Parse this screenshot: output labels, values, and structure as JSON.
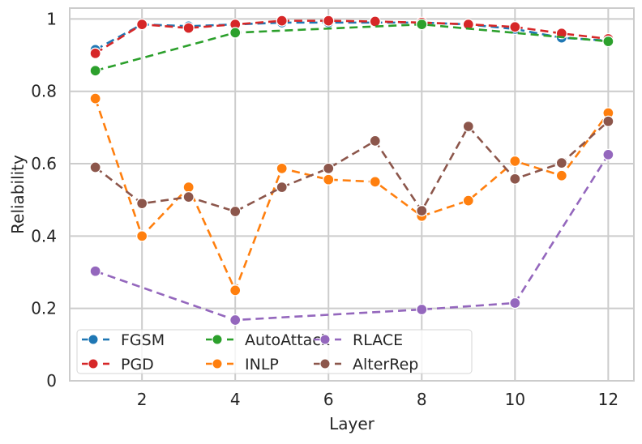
{
  "chart_data": {
    "type": "line",
    "xlabel": "Layer",
    "ylabel": "Reliability",
    "xlim": [
      0.45,
      12.55
    ],
    "ylim": [
      0,
      1.03
    ],
    "xticks": [
      2,
      4,
      6,
      8,
      10,
      12
    ],
    "yticks": [
      0,
      0.2,
      0.4,
      0.6,
      0.8,
      1
    ],
    "ytick_labels": [
      "0",
      "0.2",
      "0.4",
      "0.6",
      "0.8",
      "1"
    ],
    "grid": true,
    "legend_position": "bottom-left",
    "legend_columns": 3,
    "line_style": "dashed with circle markers",
    "series": [
      {
        "name": "FGSM",
        "color": "#1f77b4",
        "x": [
          1,
          2,
          3,
          4,
          5,
          6,
          7,
          8,
          9,
          10,
          11,
          12
        ],
        "y": [
          0.915,
          0.985,
          0.98,
          0.985,
          0.99,
          0.99,
          0.99,
          0.99,
          0.985,
          0.972,
          0.948,
          0.94
        ]
      },
      {
        "name": "PGD",
        "color": "#d62728",
        "x": [
          1,
          2,
          3,
          4,
          5,
          6,
          7,
          8,
          9,
          10,
          11,
          12
        ],
        "y": [
          0.905,
          0.985,
          0.975,
          0.985,
          0.995,
          0.995,
          0.993,
          0.99,
          0.985,
          0.978,
          0.96,
          0.945
        ]
      },
      {
        "name": "AutoAttack",
        "color": "#2ca02c",
        "x": [
          1,
          4,
          8,
          12
        ],
        "y": [
          0.857,
          0.962,
          0.985,
          0.938
        ]
      },
      {
        "name": "INLP",
        "color": "#ff7f0e",
        "x": [
          1,
          2,
          3,
          4,
          5,
          6,
          7,
          8,
          9,
          10,
          11,
          12
        ],
        "y": [
          0.78,
          0.4,
          0.535,
          0.25,
          0.587,
          0.556,
          0.55,
          0.455,
          0.498,
          0.607,
          0.567,
          0.74
        ]
      },
      {
        "name": "RLACE",
        "color": "#9467bd",
        "x": [
          1,
          4,
          8,
          10,
          12
        ],
        "y": [
          0.303,
          0.168,
          0.197,
          0.215,
          0.625
        ]
      },
      {
        "name": "AlterRep",
        "color": "#8c564b",
        "x": [
          1,
          2,
          3,
          4,
          5,
          6,
          7,
          8,
          9,
          10,
          11,
          12
        ],
        "y": [
          0.59,
          0.49,
          0.508,
          0.468,
          0.535,
          0.587,
          0.663,
          0.47,
          0.703,
          0.558,
          0.602,
          0.717
        ]
      }
    ]
  }
}
